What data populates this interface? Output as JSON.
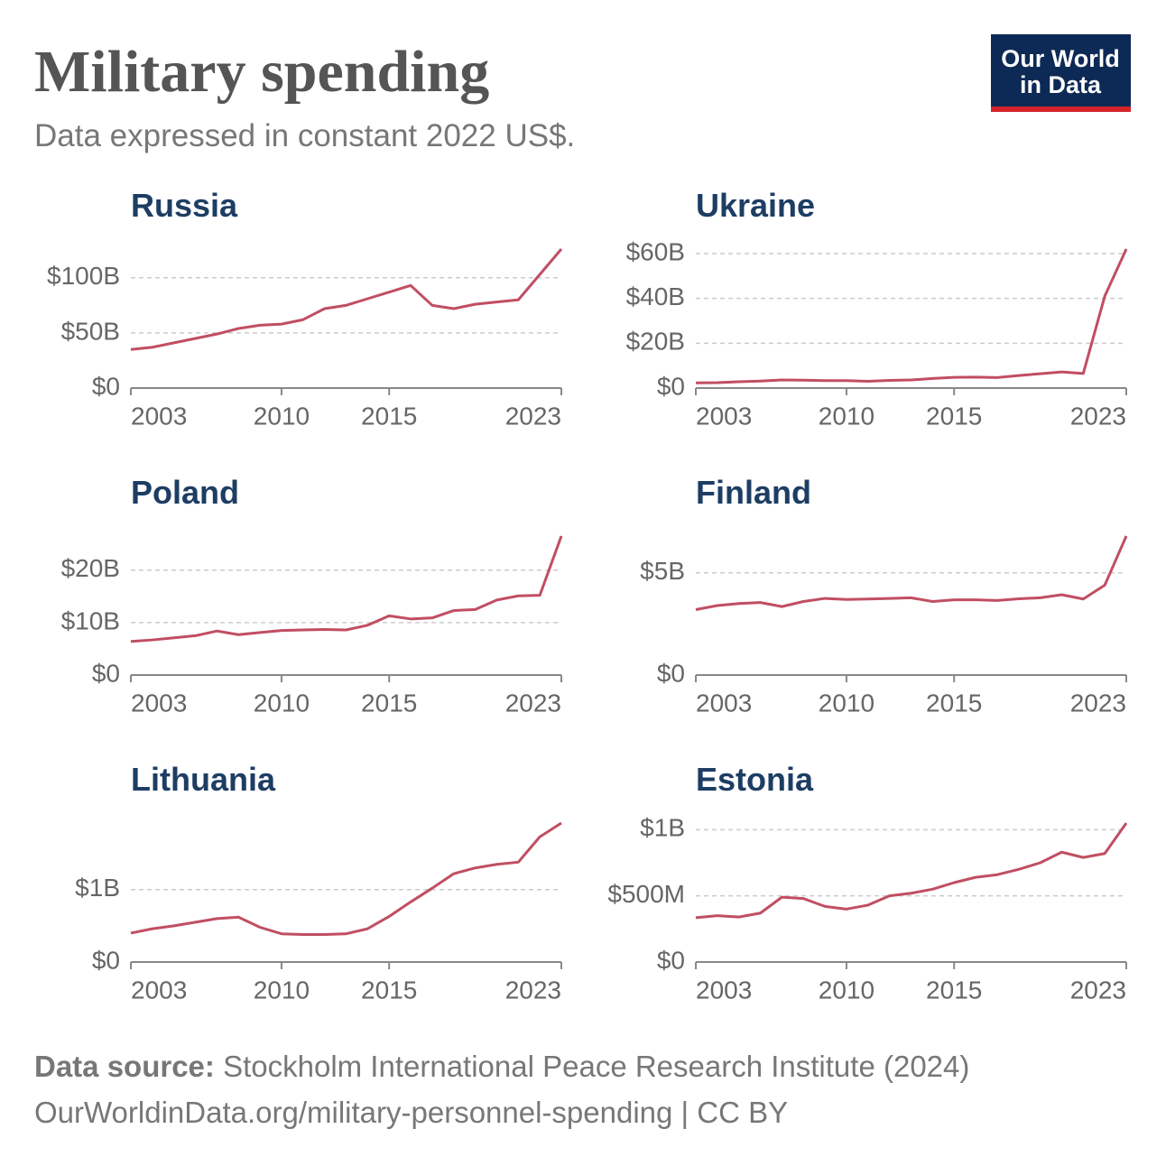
{
  "title": "Military spending",
  "subtitle": "Data expressed in constant 2022 US$.",
  "logo": [
    "Our World",
    "in Data"
  ],
  "source_label": "Data source:",
  "source": "Stockholm International Peace Research Institute (2024)",
  "url": "OurWorldinData.org/military-personnel-spending | CC BY",
  "chart_data": [
    {
      "type": "line",
      "title": "Russia",
      "color": "#c14e62",
      "grid": true,
      "x": [
        2003,
        2004,
        2005,
        2006,
        2007,
        2008,
        2009,
        2010,
        2011,
        2012,
        2013,
        2014,
        2015,
        2016,
        2017,
        2018,
        2019,
        2020,
        2021,
        2022,
        2023
      ],
      "values": [
        35,
        37,
        41,
        45,
        49,
        54,
        57,
        58,
        62,
        72,
        75,
        81,
        87,
        93,
        75,
        72,
        76,
        78,
        80,
        103,
        126
      ],
      "xlim": [
        2003,
        2023
      ],
      "xticks": [
        2003,
        2010,
        2015,
        2023
      ],
      "ylim": [
        0,
        126
      ],
      "yticks": [
        {
          "value": 0,
          "label": "$0"
        },
        {
          "value": 50,
          "label": "$50B"
        },
        {
          "value": 100,
          "label": "$100B"
        }
      ]
    },
    {
      "type": "line",
      "title": "Ukraine",
      "color": "#c14e62",
      "grid": true,
      "x": [
        2003,
        2004,
        2005,
        2006,
        2007,
        2008,
        2009,
        2010,
        2011,
        2012,
        2013,
        2014,
        2015,
        2016,
        2017,
        2018,
        2019,
        2020,
        2021,
        2022,
        2023
      ],
      "values": [
        2.3,
        2.4,
        2.8,
        3.1,
        3.6,
        3.5,
        3.3,
        3.3,
        3.0,
        3.4,
        3.6,
        4.3,
        4.8,
        4.9,
        4.7,
        5.6,
        6.4,
        7.2,
        6.5,
        41,
        62
      ],
      "xlim": [
        2003,
        2023
      ],
      "xticks": [
        2003,
        2010,
        2015,
        2023
      ],
      "ylim": [
        0,
        62
      ],
      "yticks": [
        {
          "value": 0,
          "label": "$0"
        },
        {
          "value": 20,
          "label": "$20B"
        },
        {
          "value": 40,
          "label": "$40B"
        },
        {
          "value": 60,
          "label": "$60B"
        }
      ]
    },
    {
      "type": "line",
      "title": "Poland",
      "color": "#c14e62",
      "grid": true,
      "x": [
        2003,
        2004,
        2005,
        2006,
        2007,
        2008,
        2009,
        2010,
        2011,
        2012,
        2013,
        2014,
        2015,
        2016,
        2017,
        2018,
        2019,
        2020,
        2021,
        2022,
        2023
      ],
      "values": [
        6.4,
        6.7,
        7.1,
        7.5,
        8.4,
        7.7,
        8.1,
        8.5,
        8.6,
        8.7,
        8.6,
        9.5,
        11.3,
        10.7,
        10.9,
        12.3,
        12.5,
        14.3,
        15.1,
        15.2,
        26.5
      ],
      "xlim": [
        2003,
        2023
      ],
      "xticks": [
        2003,
        2010,
        2015,
        2023
      ],
      "ylim": [
        0,
        26.5
      ],
      "yticks": [
        {
          "value": 0,
          "label": "$0"
        },
        {
          "value": 10,
          "label": "$10B"
        },
        {
          "value": 20,
          "label": "$20B"
        }
      ]
    },
    {
      "type": "line",
      "title": "Finland",
      "color": "#c14e62",
      "grid": true,
      "x": [
        2003,
        2004,
        2005,
        2006,
        2007,
        2008,
        2009,
        2010,
        2011,
        2012,
        2013,
        2014,
        2015,
        2016,
        2017,
        2018,
        2019,
        2020,
        2021,
        2022,
        2023
      ],
      "values": [
        3.2,
        3.4,
        3.5,
        3.55,
        3.35,
        3.6,
        3.75,
        3.7,
        3.72,
        3.75,
        3.78,
        3.6,
        3.68,
        3.68,
        3.65,
        3.73,
        3.78,
        3.93,
        3.72,
        4.4,
        6.8
      ],
      "xlim": [
        2003,
        2023
      ],
      "xticks": [
        2003,
        2010,
        2015,
        2023
      ],
      "ylim": [
        0,
        6.8
      ],
      "yticks": [
        {
          "value": 0,
          "label": "$0"
        },
        {
          "value": 5,
          "label": "$5B"
        }
      ]
    },
    {
      "type": "line",
      "title": "Lithuania",
      "color": "#c14e62",
      "grid": true,
      "x": [
        2003,
        2004,
        2005,
        2006,
        2007,
        2008,
        2009,
        2010,
        2011,
        2012,
        2013,
        2014,
        2015,
        2016,
        2017,
        2018,
        2019,
        2020,
        2021,
        2022,
        2023
      ],
      "values": [
        0.4,
        0.46,
        0.5,
        0.55,
        0.6,
        0.62,
        0.48,
        0.39,
        0.38,
        0.38,
        0.39,
        0.46,
        0.63,
        0.83,
        1.02,
        1.22,
        1.3,
        1.35,
        1.38,
        1.73,
        1.92
      ],
      "xlim": [
        2003,
        2023
      ],
      "xticks": [
        2003,
        2010,
        2015,
        2023
      ],
      "ylim": [
        0,
        1.92
      ],
      "yticks": [
        {
          "value": 0,
          "label": "$0"
        },
        {
          "value": 1,
          "label": "$1B"
        }
      ]
    },
    {
      "type": "line",
      "title": "Estonia",
      "color": "#c14e62",
      "grid": true,
      "x": [
        2003,
        2004,
        2005,
        2006,
        2007,
        2008,
        2009,
        2010,
        2011,
        2012,
        2013,
        2014,
        2015,
        2016,
        2017,
        2018,
        2019,
        2020,
        2021,
        2022,
        2023
      ],
      "values": [
        0.335,
        0.35,
        0.34,
        0.37,
        0.49,
        0.48,
        0.42,
        0.4,
        0.43,
        0.5,
        0.52,
        0.55,
        0.6,
        0.64,
        0.66,
        0.7,
        0.75,
        0.83,
        0.79,
        0.82,
        1.05
      ],
      "xlim": [
        2003,
        2023
      ],
      "xticks": [
        2003,
        2010,
        2015,
        2023
      ],
      "ylim": [
        0,
        1.05
      ],
      "yticks": [
        {
          "value": 0,
          "label": "$0"
        },
        {
          "value": 0.5,
          "label": "$500M"
        },
        {
          "value": 1,
          "label": "$1B"
        }
      ]
    }
  ]
}
